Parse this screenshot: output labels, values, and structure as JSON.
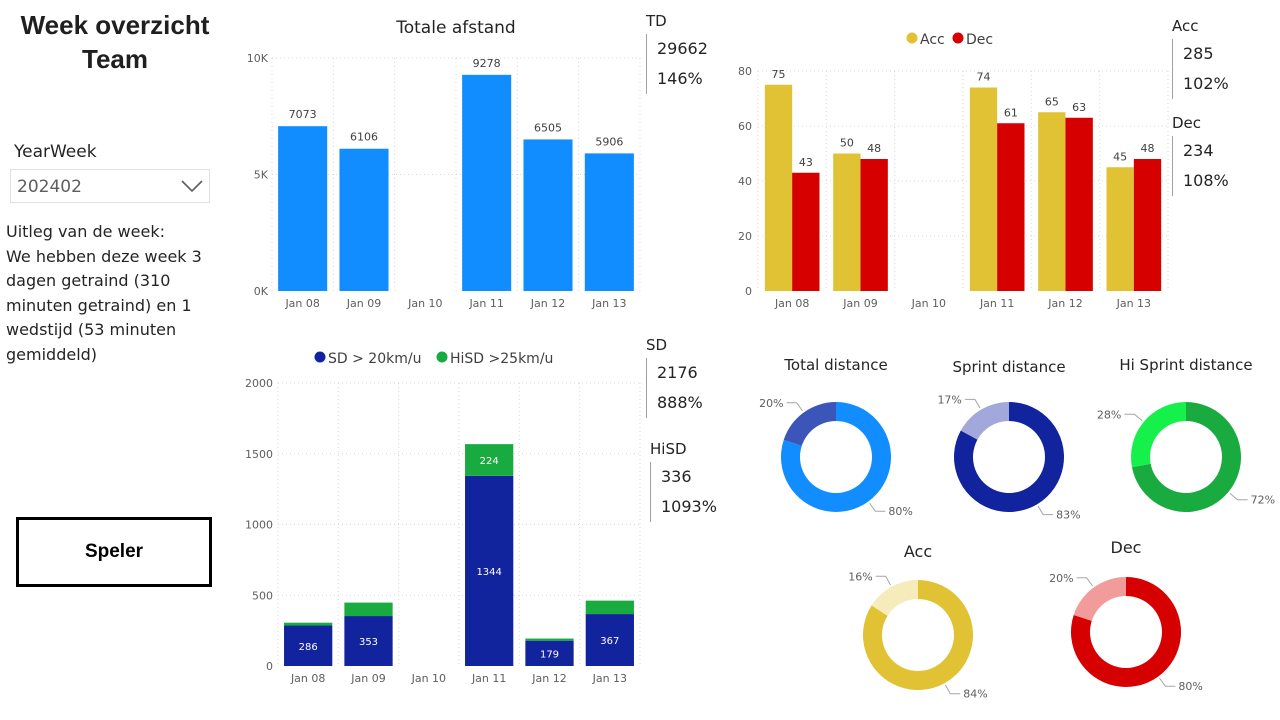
{
  "header": {
    "title_line1": "Week overzicht",
    "title_line2": "Team"
  },
  "slicer": {
    "label": "YearWeek",
    "value": "202402",
    "chevron_icon": "chevron-down-icon"
  },
  "uitleg": {
    "line1": "Uitleg van de week:",
    "line2": "We hebben deze week 3",
    "line3": "dagen getraind (310",
    "line4": "minuten getraind) en 1",
    "line5": "wedstijd (53 minuten",
    "line6": "gemiddeld)"
  },
  "button": {
    "label": "Speler"
  },
  "cards": {
    "td": {
      "label": "TD",
      "value": "29662",
      "pct": "146%"
    },
    "acc": {
      "label": "Acc",
      "value": "285",
      "pct": "102%"
    },
    "dec": {
      "label": "Dec",
      "value": "234",
      "pct": "108%"
    },
    "sd": {
      "label": "SD",
      "value": "2176",
      "pct": "888%"
    },
    "hisd": {
      "label": "HiSD",
      "value": "336",
      "pct": "1093%"
    }
  },
  "colors": {
    "blue": "#118dff",
    "navy": "#12239e",
    "green": "#1aab40",
    "yellow": "#e0c234",
    "red": "#d60000",
    "grid": "#d9d9d9",
    "axis": "#605e5c"
  },
  "chart_data": [
    {
      "id": "afstand",
      "type": "bar",
      "title": "Totale afstand",
      "categories": [
        "Jan 08",
        "Jan 09",
        "Jan 10",
        "Jan 11",
        "Jan 12",
        "Jan 13"
      ],
      "values": [
        7073,
        6106,
        null,
        9278,
        6505,
        5906
      ],
      "labels": [
        "7073",
        "6106",
        "",
        "9278",
        "6505",
        "5906"
      ],
      "yticks": [
        0,
        5000,
        10000
      ],
      "ytick_labels": [
        "0K",
        "5K",
        "10K"
      ],
      "ylim": [
        0,
        10000
      ]
    },
    {
      "id": "accdec",
      "type": "bar",
      "categories": [
        "Jan 08",
        "Jan 09",
        "Jan 10",
        "Jan 11",
        "Jan 12",
        "Jan 13"
      ],
      "legend": [
        "Acc",
        "Dec"
      ],
      "series": [
        {
          "name": "Acc",
          "values": [
            75,
            50,
            null,
            74,
            65,
            45
          ]
        },
        {
          "name": "Dec",
          "values": [
            43,
            48,
            null,
            61,
            63,
            48
          ]
        }
      ],
      "yticks": [
        0,
        20,
        40,
        60,
        80
      ],
      "ytick_labels": [
        "0",
        "20",
        "40",
        "60",
        "80"
      ],
      "ylim": [
        0,
        80
      ]
    },
    {
      "id": "sprint",
      "type": "bar",
      "stacked": true,
      "categories": [
        "Jan 08",
        "Jan 09",
        "Jan 10",
        "Jan 11",
        "Jan 12",
        "Jan 13"
      ],
      "legend": [
        "SD > 20km/u",
        "HiSD >25km/u"
      ],
      "series": [
        {
          "name": "SD > 20km/u",
          "values": [
            286,
            353,
            null,
            1344,
            179,
            367
          ],
          "labels": [
            "286",
            "353",
            "",
            "1344",
            "179",
            "367"
          ]
        },
        {
          "name": "HiSD >25km/u",
          "values": [
            20,
            95,
            null,
            224,
            15,
            95
          ],
          "labels": [
            "",
            "",
            "",
            "224",
            "",
            ""
          ]
        }
      ],
      "yticks": [
        0,
        500,
        1000,
        1500,
        2000
      ],
      "ytick_labels": [
        "0",
        "500",
        "1000",
        "1500",
        "2000"
      ],
      "ylim": [
        0,
        2000
      ]
    },
    {
      "id": "donut-total",
      "type": "pie",
      "title": "Total distance",
      "slices": [
        {
          "value": 80,
          "label": "80%",
          "color": "#118dff"
        },
        {
          "value": 20,
          "label": "20%",
          "color": "#3c55b8"
        }
      ]
    },
    {
      "id": "donut-sprint",
      "type": "pie",
      "title": "Sprint distance",
      "slices": [
        {
          "value": 83,
          "label": "83%",
          "color": "#12239e"
        },
        {
          "value": 17,
          "label": "17%",
          "color": "#a2a8dc"
        }
      ]
    },
    {
      "id": "donut-hisprint",
      "type": "pie",
      "title": "Hi Sprint distance",
      "slices": [
        {
          "value": 72,
          "label": "72%",
          "color": "#1aab40"
        },
        {
          "value": 28,
          "label": "28%",
          "color": "#15f04b"
        }
      ]
    },
    {
      "id": "donut-acc",
      "type": "pie",
      "title": "Acc",
      "slices": [
        {
          "value": 84,
          "label": "84%",
          "color": "#e0c234"
        },
        {
          "value": 16,
          "label": "16%",
          "color": "#f6ebba"
        }
      ]
    },
    {
      "id": "donut-dec",
      "type": "pie",
      "title": "Dec",
      "slices": [
        {
          "value": 80,
          "label": "80%",
          "color": "#d60000"
        },
        {
          "value": 20,
          "label": "20%",
          "color": "#f29b9b"
        }
      ]
    }
  ]
}
